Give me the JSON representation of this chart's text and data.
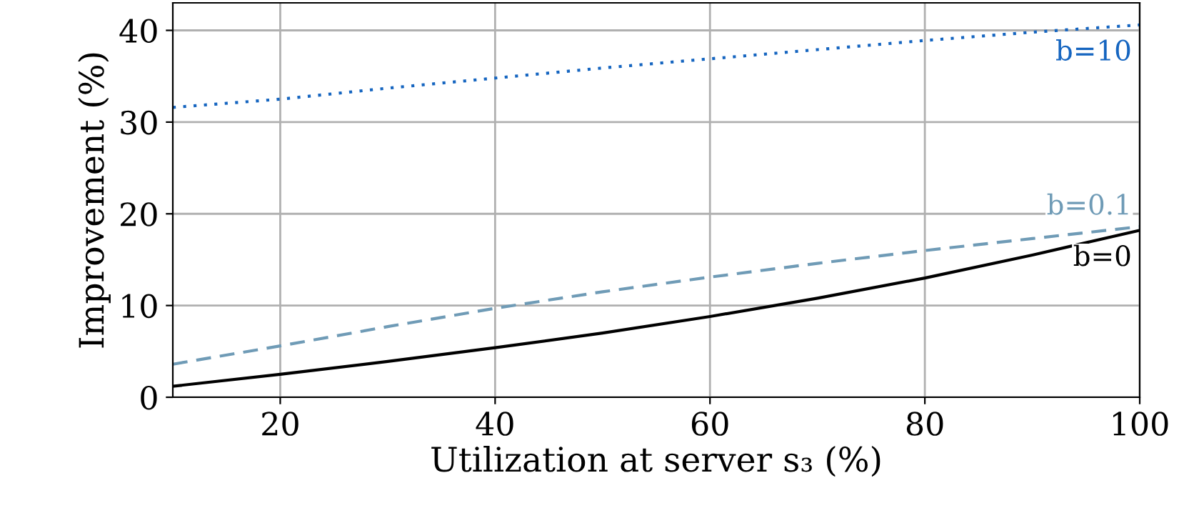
{
  "chart_data": {
    "type": "line",
    "xlabel": "Utilization at server s₃ (%)",
    "ylabel": "Improvement (%)",
    "x": [
      10,
      20,
      30,
      40,
      50,
      60,
      70,
      80,
      90,
      100
    ],
    "series": [
      {
        "name": "b=10",
        "color": "#1565c0",
        "line_style": "dotted",
        "values": [
          31.6,
          32.5,
          33.7,
          34.8,
          35.9,
          36.9,
          37.9,
          38.9,
          39.8,
          40.6
        ]
      },
      {
        "name": "b=0.1",
        "color": "#6f9bb6",
        "line_style": "dashed",
        "values": [
          3.6,
          5.6,
          7.7,
          9.7,
          11.5,
          13.1,
          14.6,
          16.0,
          17.3,
          18.6
        ]
      },
      {
        "name": "b=0",
        "color": "#000000",
        "line_style": "solid",
        "values": [
          1.2,
          2.5,
          3.9,
          5.4,
          7.0,
          8.8,
          10.8,
          13.0,
          15.5,
          18.2
        ]
      }
    ],
    "xlim": [
      10,
      100
    ],
    "ylim": [
      0,
      43
    ],
    "xticks": [
      20,
      40,
      60,
      80,
      100
    ],
    "yticks": [
      0,
      10,
      20,
      30,
      40
    ],
    "grid": true,
    "legend": false,
    "marker": "none"
  }
}
